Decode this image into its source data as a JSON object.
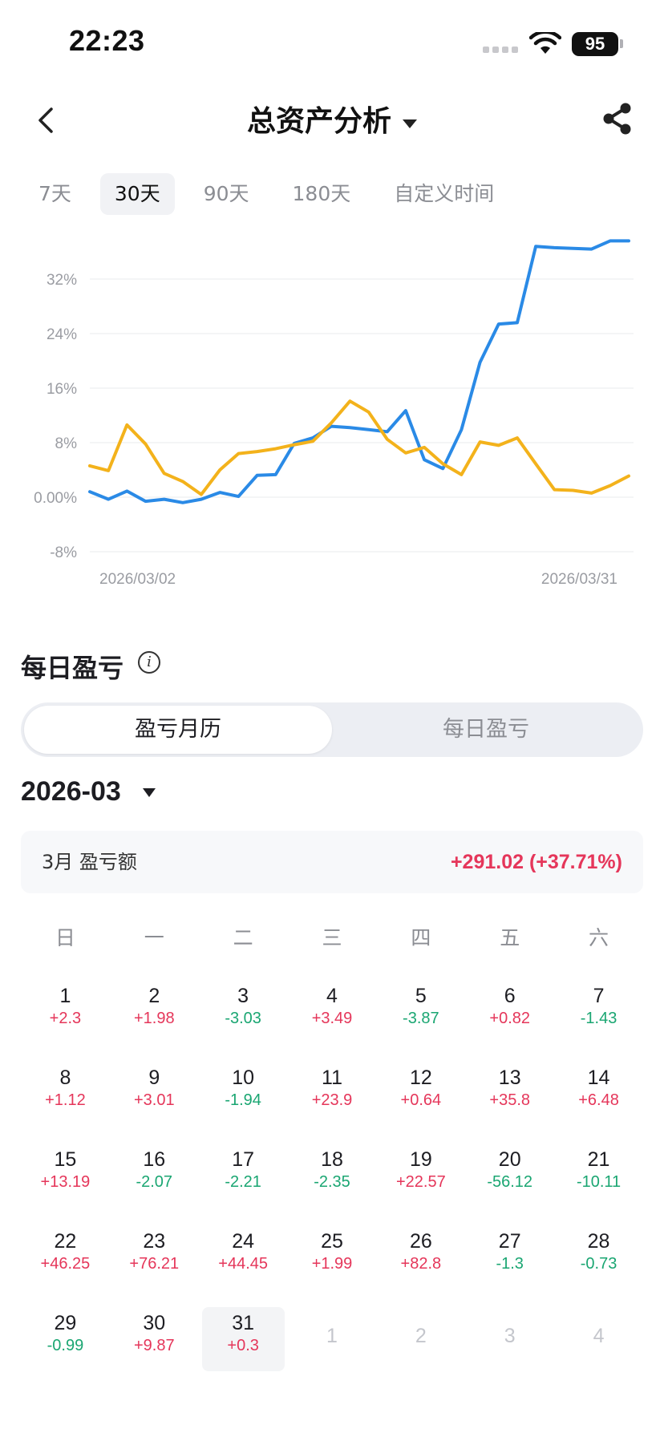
{
  "status_bar": {
    "time": "22:23",
    "battery": "95"
  },
  "header": {
    "title": "总资产分析"
  },
  "range_tabs": [
    {
      "label": "7天",
      "active": false
    },
    {
      "label": "30天",
      "active": true
    },
    {
      "label": "90天",
      "active": false
    },
    {
      "label": "180天",
      "active": false
    },
    {
      "label": "自定义时间",
      "active": false
    }
  ],
  "chart_data": {
    "type": "line",
    "x_tick_labels": [
      "2026/03/02",
      "2026/03/31"
    ],
    "y_ticks": [
      32,
      24,
      16,
      8,
      0,
      -8
    ],
    "y_tick_labels": [
      "32%",
      "24%",
      "16%",
      "8%",
      "0.00%",
      "-8%"
    ],
    "ylim": [
      -8,
      37
    ],
    "grid": true,
    "series": [
      {
        "color": "#2a8ae6",
        "values": [
          0.8,
          -0.3,
          0.9,
          -0.6,
          -0.3,
          -0.8,
          -0.3,
          0.7,
          0.1,
          3.2,
          3.3,
          7.9,
          8.7,
          10.4,
          10.2,
          9.9,
          9.6,
          12.7,
          5.5,
          4.2,
          9.9,
          19.8,
          25.4,
          25.6,
          36.8,
          36.6,
          36.5,
          36.4,
          37.6,
          37.6
        ]
      },
      {
        "color": "#f3b21b",
        "values": [
          4.6,
          3.9,
          10.6,
          7.8,
          3.5,
          2.3,
          0.4,
          4.0,
          6.4,
          6.7,
          7.1,
          7.7,
          8.2,
          10.9,
          14.1,
          12.5,
          8.5,
          6.5,
          7.3,
          4.9,
          3.3,
          8.1,
          7.6,
          8.7,
          4.9,
          1.1,
          1.0,
          0.6,
          1.7,
          3.1
        ]
      }
    ]
  },
  "daily_section": {
    "title": "每日盈亏"
  },
  "segmented": {
    "left_label": "盈亏月历",
    "right_label": "每日盈亏"
  },
  "month_picker": {
    "label": "2026-03"
  },
  "summary": {
    "label": "3月 盈亏额",
    "value": "+291.02 (+37.71%)"
  },
  "weekdays": [
    "日",
    "一",
    "二",
    "三",
    "四",
    "五",
    "六"
  ],
  "calendar": {
    "days": [
      {
        "day": "1",
        "pnl": "+2.3",
        "sign": "pos"
      },
      {
        "day": "2",
        "pnl": "+1.98",
        "sign": "pos"
      },
      {
        "day": "3",
        "pnl": "-3.03",
        "sign": "neg"
      },
      {
        "day": "4",
        "pnl": "+3.49",
        "sign": "pos"
      },
      {
        "day": "5",
        "pnl": "-3.87",
        "sign": "neg"
      },
      {
        "day": "6",
        "pnl": "+0.82",
        "sign": "pos"
      },
      {
        "day": "7",
        "pnl": "-1.43",
        "sign": "neg"
      },
      {
        "day": "8",
        "pnl": "+1.12",
        "sign": "pos"
      },
      {
        "day": "9",
        "pnl": "+3.01",
        "sign": "pos"
      },
      {
        "day": "10",
        "pnl": "-1.94",
        "sign": "neg"
      },
      {
        "day": "11",
        "pnl": "+23.9",
        "sign": "pos"
      },
      {
        "day": "12",
        "pnl": "+0.64",
        "sign": "pos"
      },
      {
        "day": "13",
        "pnl": "+35.8",
        "sign": "pos"
      },
      {
        "day": "14",
        "pnl": "+6.48",
        "sign": "pos"
      },
      {
        "day": "15",
        "pnl": "+13.19",
        "sign": "pos"
      },
      {
        "day": "16",
        "pnl": "-2.07",
        "sign": "neg"
      },
      {
        "day": "17",
        "pnl": "-2.21",
        "sign": "neg"
      },
      {
        "day": "18",
        "pnl": "-2.35",
        "sign": "neg"
      },
      {
        "day": "19",
        "pnl": "+22.57",
        "sign": "pos"
      },
      {
        "day": "20",
        "pnl": "-56.12",
        "sign": "neg"
      },
      {
        "day": "21",
        "pnl": "-10.11",
        "sign": "neg"
      },
      {
        "day": "22",
        "pnl": "+46.25",
        "sign": "pos"
      },
      {
        "day": "23",
        "pnl": "+76.21",
        "sign": "pos"
      },
      {
        "day": "24",
        "pnl": "+44.45",
        "sign": "pos"
      },
      {
        "day": "25",
        "pnl": "+1.99",
        "sign": "pos"
      },
      {
        "day": "26",
        "pnl": "+82.8",
        "sign": "pos"
      },
      {
        "day": "27",
        "pnl": "-1.3",
        "sign": "neg"
      },
      {
        "day": "28",
        "pnl": "-0.73",
        "sign": "neg"
      },
      {
        "day": "29",
        "pnl": "-0.99",
        "sign": "neg"
      },
      {
        "day": "30",
        "pnl": "+9.87",
        "sign": "pos"
      },
      {
        "day": "31",
        "pnl": "+0.3",
        "sign": "pos",
        "selected": true
      }
    ],
    "next_month_days": [
      "1",
      "2",
      "3",
      "4"
    ]
  },
  "colors": {
    "positive": "#e5365a",
    "negative": "#1aa672",
    "blue_line": "#2a8ae6",
    "yellow_line": "#f3b21b"
  }
}
